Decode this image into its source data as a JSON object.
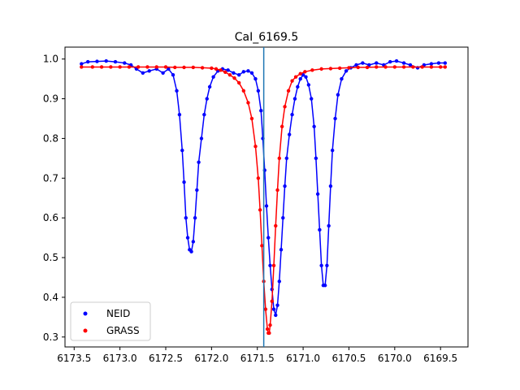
{
  "chart_data": {
    "type": "scatter",
    "title": "CaI_6169.5",
    "xlabel": "",
    "ylabel": "",
    "xlim": [
      6173.6,
      6169.2
    ],
    "ylim": [
      0.275,
      1.03
    ],
    "x_inverted": true,
    "xticks": [
      6173.5,
      6173.0,
      6172.5,
      6172.0,
      6171.5,
      6171.0,
      6170.5,
      6170.0,
      6169.5
    ],
    "xtick_labels": [
      "6173.5",
      "6173.0",
      "6172.5",
      "6172.0",
      "6171.5",
      "6171.0",
      "6170.5",
      "6170.0",
      "6169.5"
    ],
    "yticks": [
      0.3,
      0.4,
      0.5,
      0.6,
      0.7,
      0.8,
      0.9,
      1.0
    ],
    "ytick_labels": [
      "0.3",
      "0.4",
      "0.5",
      "0.6",
      "0.7",
      "0.8",
      "0.9",
      "1.0"
    ],
    "grid": false,
    "legend": {
      "placement": "lower-left"
    },
    "vline": {
      "x": 6171.43,
      "color": "#1f77b4"
    },
    "series": [
      {
        "name": "NEID",
        "color": "#0000ff",
        "points": [
          [
            6173.42,
            0.988
          ],
          [
            6173.35,
            0.993
          ],
          [
            6173.25,
            0.994
          ],
          [
            6173.15,
            0.995
          ],
          [
            6173.05,
            0.993
          ],
          [
            6172.95,
            0.99
          ],
          [
            6172.88,
            0.985
          ],
          [
            6172.82,
            0.975
          ],
          [
            6172.75,
            0.965
          ],
          [
            6172.68,
            0.97
          ],
          [
            6172.6,
            0.975
          ],
          [
            6172.53,
            0.965
          ],
          [
            6172.47,
            0.975
          ],
          [
            6172.42,
            0.96
          ],
          [
            6172.38,
            0.92
          ],
          [
            6172.35,
            0.86
          ],
          [
            6172.32,
            0.77
          ],
          [
            6172.3,
            0.69
          ],
          [
            6172.28,
            0.6
          ],
          [
            6172.26,
            0.55
          ],
          [
            6172.24,
            0.52
          ],
          [
            6172.22,
            0.515
          ],
          [
            6172.2,
            0.54
          ],
          [
            6172.18,
            0.6
          ],
          [
            6172.16,
            0.67
          ],
          [
            6172.14,
            0.74
          ],
          [
            6172.11,
            0.8
          ],
          [
            6172.08,
            0.86
          ],
          [
            6172.05,
            0.9
          ],
          [
            6172.02,
            0.93
          ],
          [
            6171.98,
            0.955
          ],
          [
            6171.93,
            0.97
          ],
          [
            6171.88,
            0.975
          ],
          [
            6171.82,
            0.972
          ],
          [
            6171.76,
            0.965
          ],
          [
            6171.7,
            0.96
          ],
          [
            6171.65,
            0.968
          ],
          [
            6171.6,
            0.97
          ],
          [
            6171.56,
            0.965
          ],
          [
            6171.52,
            0.95
          ],
          [
            6171.49,
            0.92
          ],
          [
            6171.46,
            0.87
          ],
          [
            6171.44,
            0.8
          ],
          [
            6171.42,
            0.72
          ],
          [
            6171.4,
            0.63
          ],
          [
            6171.38,
            0.55
          ],
          [
            6171.36,
            0.48
          ],
          [
            6171.34,
            0.42
          ],
          [
            6171.32,
            0.37
          ],
          [
            6171.3,
            0.355
          ],
          [
            6171.28,
            0.38
          ],
          [
            6171.26,
            0.44
          ],
          [
            6171.24,
            0.52
          ],
          [
            6171.22,
            0.6
          ],
          [
            6171.2,
            0.68
          ],
          [
            6171.18,
            0.75
          ],
          [
            6171.15,
            0.81
          ],
          [
            6171.12,
            0.86
          ],
          [
            6171.09,
            0.9
          ],
          [
            6171.06,
            0.93
          ],
          [
            6171.03,
            0.95
          ],
          [
            6171.0,
            0.96
          ],
          [
            6170.97,
            0.955
          ],
          [
            6170.94,
            0.935
          ],
          [
            6170.91,
            0.9
          ],
          [
            6170.88,
            0.83
          ],
          [
            6170.86,
            0.75
          ],
          [
            6170.84,
            0.66
          ],
          [
            6170.82,
            0.57
          ],
          [
            6170.8,
            0.48
          ],
          [
            6170.78,
            0.43
          ],
          [
            6170.76,
            0.43
          ],
          [
            6170.74,
            0.48
          ],
          [
            6170.72,
            0.58
          ],
          [
            6170.7,
            0.68
          ],
          [
            6170.68,
            0.77
          ],
          [
            6170.65,
            0.85
          ],
          [
            6170.62,
            0.91
          ],
          [
            6170.58,
            0.95
          ],
          [
            6170.53,
            0.97
          ],
          [
            6170.48,
            0.978
          ],
          [
            6170.42,
            0.985
          ],
          [
            6170.35,
            0.99
          ],
          [
            6170.28,
            0.985
          ],
          [
            6170.2,
            0.99
          ],
          [
            6170.12,
            0.985
          ],
          [
            6170.05,
            0.993
          ],
          [
            6169.98,
            0.995
          ],
          [
            6169.9,
            0.99
          ],
          [
            6169.83,
            0.985
          ],
          [
            6169.75,
            0.978
          ],
          [
            6169.68,
            0.985
          ],
          [
            6169.6,
            0.988
          ],
          [
            6169.52,
            0.99
          ],
          [
            6169.45,
            0.99
          ]
        ]
      },
      {
        "name": "GRASS",
        "color": "#ff0000",
        "points": [
          [
            6173.42,
            0.98
          ],
          [
            6173.3,
            0.98
          ],
          [
            6173.2,
            0.98
          ],
          [
            6173.1,
            0.98
          ],
          [
            6173.0,
            0.98
          ],
          [
            6172.9,
            0.98
          ],
          [
            6172.8,
            0.98
          ],
          [
            6172.7,
            0.98
          ],
          [
            6172.6,
            0.98
          ],
          [
            6172.5,
            0.98
          ],
          [
            6172.4,
            0.979
          ],
          [
            6172.3,
            0.979
          ],
          [
            6172.2,
            0.979
          ],
          [
            6172.1,
            0.978
          ],
          [
            6172.0,
            0.977
          ],
          [
            6171.95,
            0.975
          ],
          [
            6171.9,
            0.972
          ],
          [
            6171.85,
            0.967
          ],
          [
            6171.8,
            0.96
          ],
          [
            6171.75,
            0.952
          ],
          [
            6171.7,
            0.94
          ],
          [
            6171.65,
            0.92
          ],
          [
            6171.6,
            0.89
          ],
          [
            6171.56,
            0.85
          ],
          [
            6171.52,
            0.78
          ],
          [
            6171.49,
            0.7
          ],
          [
            6171.47,
            0.62
          ],
          [
            6171.45,
            0.53
          ],
          [
            6171.43,
            0.44
          ],
          [
            6171.41,
            0.37
          ],
          [
            6171.39,
            0.32
          ],
          [
            6171.38,
            0.31
          ],
          [
            6171.37,
            0.31
          ],
          [
            6171.36,
            0.33
          ],
          [
            6171.34,
            0.39
          ],
          [
            6171.32,
            0.48
          ],
          [
            6171.3,
            0.58
          ],
          [
            6171.28,
            0.67
          ],
          [
            6171.26,
            0.75
          ],
          [
            6171.23,
            0.83
          ],
          [
            6171.2,
            0.88
          ],
          [
            6171.16,
            0.92
          ],
          [
            6171.12,
            0.945
          ],
          [
            6171.08,
            0.955
          ],
          [
            6171.03,
            0.963
          ],
          [
            6170.98,
            0.968
          ],
          [
            6170.9,
            0.972
          ],
          [
            6170.8,
            0.975
          ],
          [
            6170.7,
            0.976
          ],
          [
            6170.6,
            0.977
          ],
          [
            6170.5,
            0.978
          ],
          [
            6170.4,
            0.979
          ],
          [
            6170.3,
            0.979
          ],
          [
            6170.2,
            0.98
          ],
          [
            6170.1,
            0.98
          ],
          [
            6170.0,
            0.98
          ],
          [
            6169.9,
            0.98
          ],
          [
            6169.8,
            0.98
          ],
          [
            6169.7,
            0.98
          ],
          [
            6169.6,
            0.98
          ],
          [
            6169.5,
            0.98
          ],
          [
            6169.45,
            0.98
          ]
        ]
      }
    ]
  }
}
